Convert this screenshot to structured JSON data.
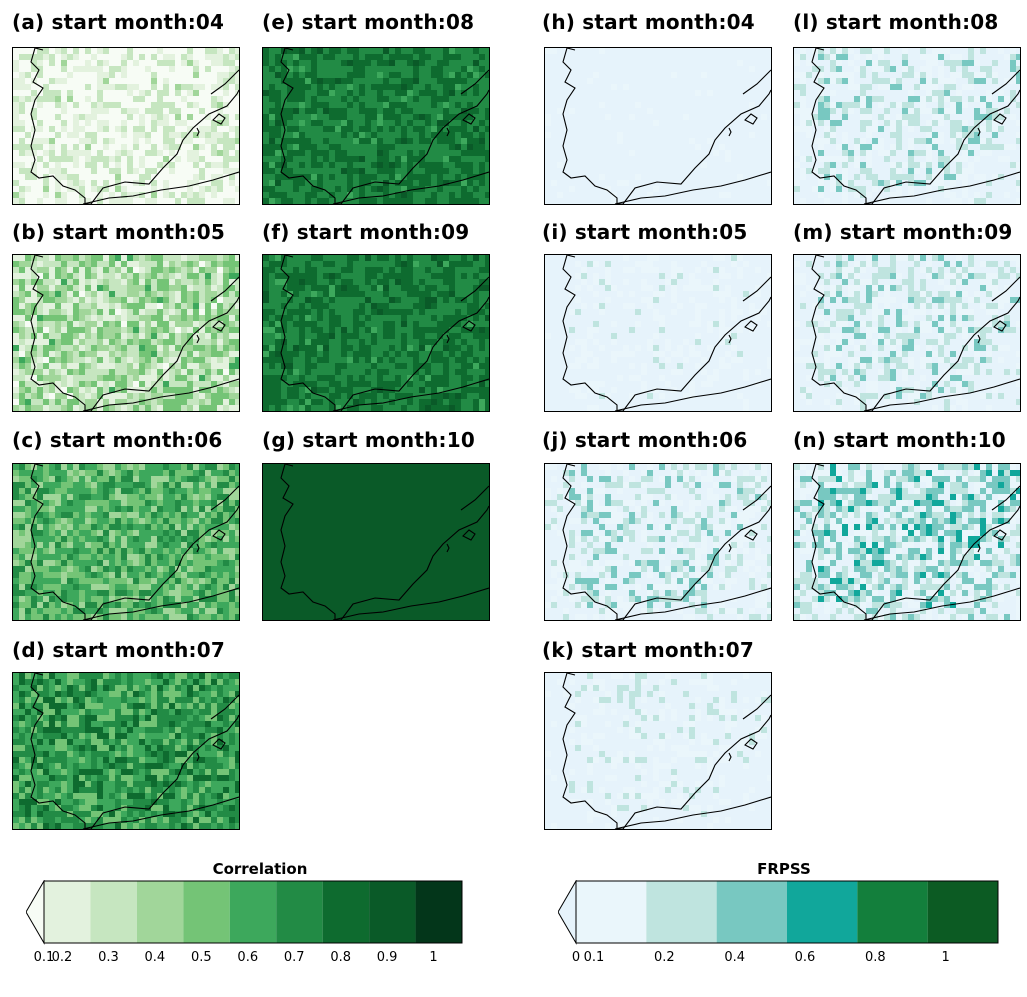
{
  "figure": {
    "left_group_colorbar": "correlation",
    "right_group_colorbar": "frpss"
  },
  "panels": {
    "a": {
      "title": "(a) start month:04",
      "metric": "Correlation",
      "shade_level": 1,
      "variability": "high"
    },
    "b": {
      "title": "(b) start month:05",
      "metric": "Correlation",
      "shade_level": 3,
      "variability": "high"
    },
    "c": {
      "title": "(c) start month:06",
      "metric": "Correlation",
      "shade_level": 5,
      "variability": "medium"
    },
    "d": {
      "title": "(d) start month:07",
      "metric": "Correlation",
      "shade_level": 6,
      "variability": "medium"
    },
    "e": {
      "title": "(e) start month:08",
      "metric": "Correlation",
      "shade_level": 7,
      "variability": "low"
    },
    "f": {
      "title": "(f) start month:09",
      "metric": "Correlation",
      "shade_level": 7,
      "variability": "low"
    },
    "g": {
      "title": "(g) start month:10",
      "metric": "Correlation",
      "shade_level": 8,
      "variability": "none"
    },
    "h": {
      "title": "(h) start month:04",
      "metric": "FRPSS",
      "shade_level": 0,
      "variability": "low"
    },
    "i": {
      "title": "(i) start month:05",
      "metric": "FRPSS",
      "shade_level": 1,
      "variability": "medium"
    },
    "j": {
      "title": "(j) start month:06",
      "metric": "FRPSS",
      "shade_level": 2,
      "variability": "high"
    },
    "k": {
      "title": "(k) start month:07",
      "metric": "FRPSS",
      "shade_level": 1,
      "variability": "high"
    },
    "l": {
      "title": "(l) start month:08",
      "metric": "FRPSS",
      "shade_level": 2,
      "variability": "high"
    },
    "m": {
      "title": "(m) start month:09",
      "metric": "FRPSS",
      "shade_level": 2,
      "variability": "high"
    },
    "n": {
      "title": "(n) start month:10",
      "metric": "FRPSS",
      "shade_level": 3,
      "variability": "high"
    }
  },
  "colorbars": {
    "correlation": {
      "title": "Correlation",
      "ticks": [
        "0.1",
        "0.2",
        "0.3",
        "0.4",
        "0.5",
        "0.6",
        "0.7",
        "0.8",
        "0.9",
        "1"
      ],
      "colors": [
        "#f7fcf5",
        "#e3f2de",
        "#c6e6c0",
        "#a1d69a",
        "#74c476",
        "#3da85c",
        "#228b45",
        "#0e6b2f",
        "#0a5a28",
        "#03361a"
      ],
      "extend": "min"
    },
    "frpss": {
      "title": "FRPSS",
      "ticks": [
        "0",
        "0.1",
        "0.2",
        "0.4",
        "0.6",
        "0.8",
        "1"
      ],
      "colors": [
        "#e6f3fb",
        "#eaf6fb",
        "#bfe4df",
        "#78c8c1",
        "#11a79b",
        "#137f3c",
        "#0c5b23"
      ],
      "extend": "min"
    }
  }
}
